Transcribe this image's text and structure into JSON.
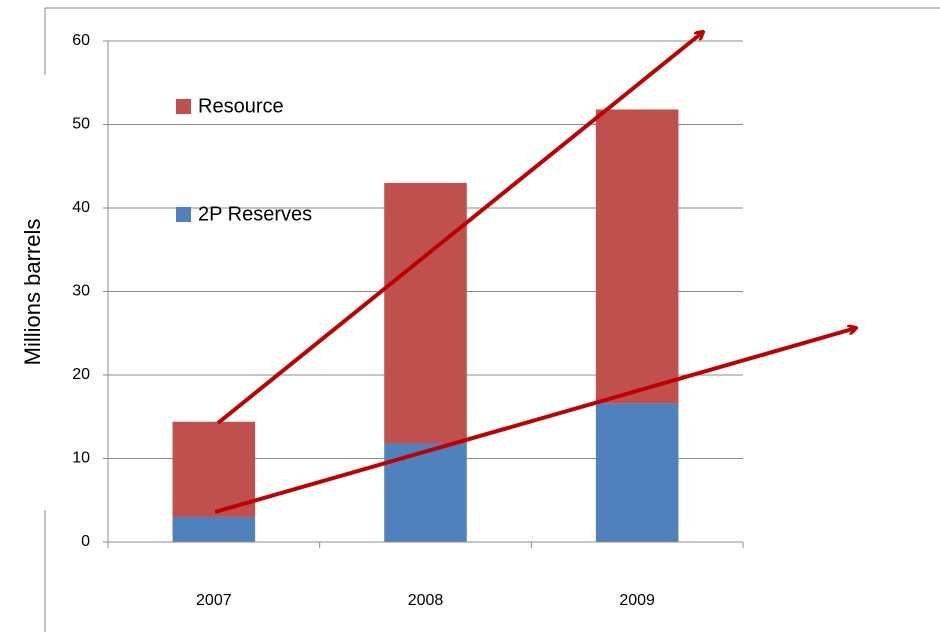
{
  "chart_data": {
    "type": "stacked_bar",
    "y_label": "Millions barrels",
    "categories": [
      "2007",
      "2008",
      "2009"
    ],
    "series": [
      {
        "name": "2P Reserves",
        "color": "#4f81bd",
        "values": [
          3,
          11.8,
          16.6
        ]
      },
      {
        "name": "Resource",
        "color": "#c0504d",
        "values": [
          11.4,
          31.2,
          35.2
        ]
      }
    ],
    "ylim": [
      0,
      60
    ],
    "yticks": [
      0,
      10,
      20,
      30,
      40,
      50,
      60
    ],
    "grid": true,
    "legend": "upper left"
  }
}
